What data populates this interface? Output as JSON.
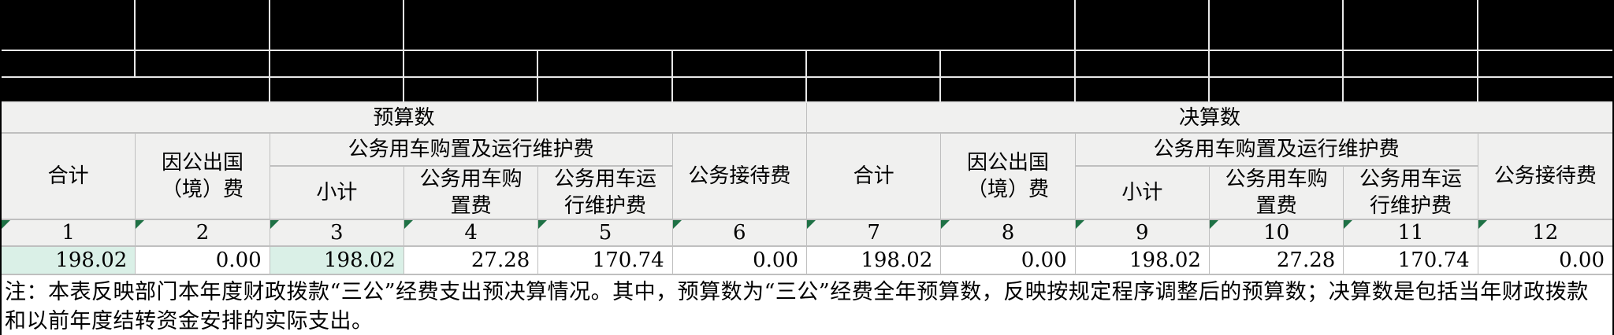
{
  "table": {
    "section_headers": {
      "budget": "预算数",
      "final": "决算数"
    },
    "column_headers": {
      "total": "合计",
      "abroad": "因公出国（境）费",
      "vehicle_group": "公务用车购置及运行维护费",
      "subtotal": "小计",
      "vehicle_purchase": "公务用车购置费",
      "vehicle_maintenance": "公务用车运行维护费",
      "reception": "公务接待费"
    },
    "column_numbers": [
      "1",
      "2",
      "3",
      "4",
      "5",
      "6",
      "7",
      "8",
      "9",
      "10",
      "11",
      "12"
    ],
    "data_row": [
      "198.02",
      "0.00",
      "198.02",
      "27.28",
      "170.74",
      "0.00",
      "198.02",
      "0.00",
      "198.02",
      "27.28",
      "170.74",
      "0.00"
    ],
    "highlighted_columns": [
      1,
      3
    ]
  },
  "note": "注：本表反映部门本年度财政拨款“三公”经费支出预决算情况。其中，预算数为“三公”经费全年预算数，反映按规定程序调整后的预算数；决算数是包括当年财政拨款和以前年度结转资金安排的实际支出。",
  "colors": {
    "highlight_cell": "#daf0e7",
    "header_bg": "#f0f0ef",
    "indicator_green": "#1e7145",
    "redacted": "#000000"
  }
}
